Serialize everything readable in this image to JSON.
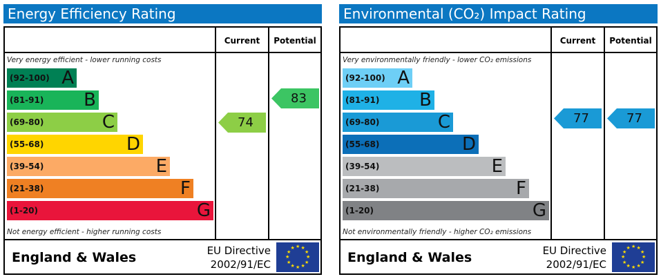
{
  "chart_data": [
    {
      "type": "bar",
      "title": "Energy Efficiency Rating",
      "columns": [
        "Current",
        "Potential"
      ],
      "top_note": "Very energy efficient - lower running costs",
      "bottom_note": "Not energy efficient - higher running costs",
      "bands": [
        {
          "range": "(92-100)",
          "letter": "A",
          "color": "#008054"
        },
        {
          "range": "(81-91)",
          "letter": "B",
          "color": "#19b459"
        },
        {
          "range": "(69-80)",
          "letter": "C",
          "color": "#8dce46"
        },
        {
          "range": "(55-68)",
          "letter": "D",
          "color": "#ffd500"
        },
        {
          "range": "(39-54)",
          "letter": "E",
          "color": "#fcaa65"
        },
        {
          "range": "(21-38)",
          "letter": "F",
          "color": "#ef8023"
        },
        {
          "range": "(1-20)",
          "letter": "G",
          "color": "#e9153b"
        }
      ],
      "current": {
        "value": 74,
        "band": "C",
        "color": "#8dce46"
      },
      "potential": {
        "value": 83,
        "band": "B",
        "color": "#3cc563"
      },
      "footer": "England & Wales",
      "directive": [
        "EU Directive",
        "2002/91/EC"
      ]
    },
    {
      "type": "bar",
      "title": "Environmental (CO₂) Impact Rating",
      "columns": [
        "Current",
        "Potential"
      ],
      "top_note": "Very environmentally friendly - lower CO₂ emissions",
      "bottom_note": "Not environmentally friendly - higher CO₂ emissions",
      "bands": [
        {
          "range": "(92-100)",
          "letter": "A",
          "color": "#6ecff6"
        },
        {
          "range": "(81-91)",
          "letter": "B",
          "color": "#1fb1e6"
        },
        {
          "range": "(69-80)",
          "letter": "C",
          "color": "#1a9ad6"
        },
        {
          "range": "(55-68)",
          "letter": "D",
          "color": "#0c6fb8"
        },
        {
          "range": "(39-54)",
          "letter": "E",
          "color": "#bbbdbf"
        },
        {
          "range": "(21-38)",
          "letter": "F",
          "color": "#a7a9ac"
        },
        {
          "range": "(1-20)",
          "letter": "G",
          "color": "#808285"
        }
      ],
      "current": {
        "value": 77,
        "band": "C",
        "color": "#1a9ad6"
      },
      "potential": {
        "value": 77,
        "band": "C",
        "color": "#1a9ad6"
      },
      "footer": "England & Wales",
      "directive": [
        "EU Directive",
        "2002/91/EC"
      ]
    }
  ]
}
